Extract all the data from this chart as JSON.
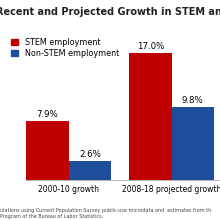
{
  "title": "Recent and Projected Growth in STEM and Non-STEM",
  "groups": [
    "2000-10 growth",
    "2008-18 projected growth"
  ],
  "stem_values": [
    7.9,
    17.0
  ],
  "non_stem_values": [
    2.6,
    9.8
  ],
  "stem_color": "#C00000",
  "non_stem_color": "#1F4E9C",
  "stem_label": "STEM employment",
  "non_stem_label": "Non-STEM employment",
  "ylim": [
    0,
    20
  ],
  "bar_width": 0.35,
  "footnote": "ulations using Current Population Survey public-use microdata and  estimates from th\nProgram of the Bureau of Labor Statistics.",
  "title_fontsize": 7.0,
  "tick_fontsize": 5.5,
  "value_fontsize": 6.2,
  "legend_fontsize": 5.8,
  "background_color": "#ffffff"
}
